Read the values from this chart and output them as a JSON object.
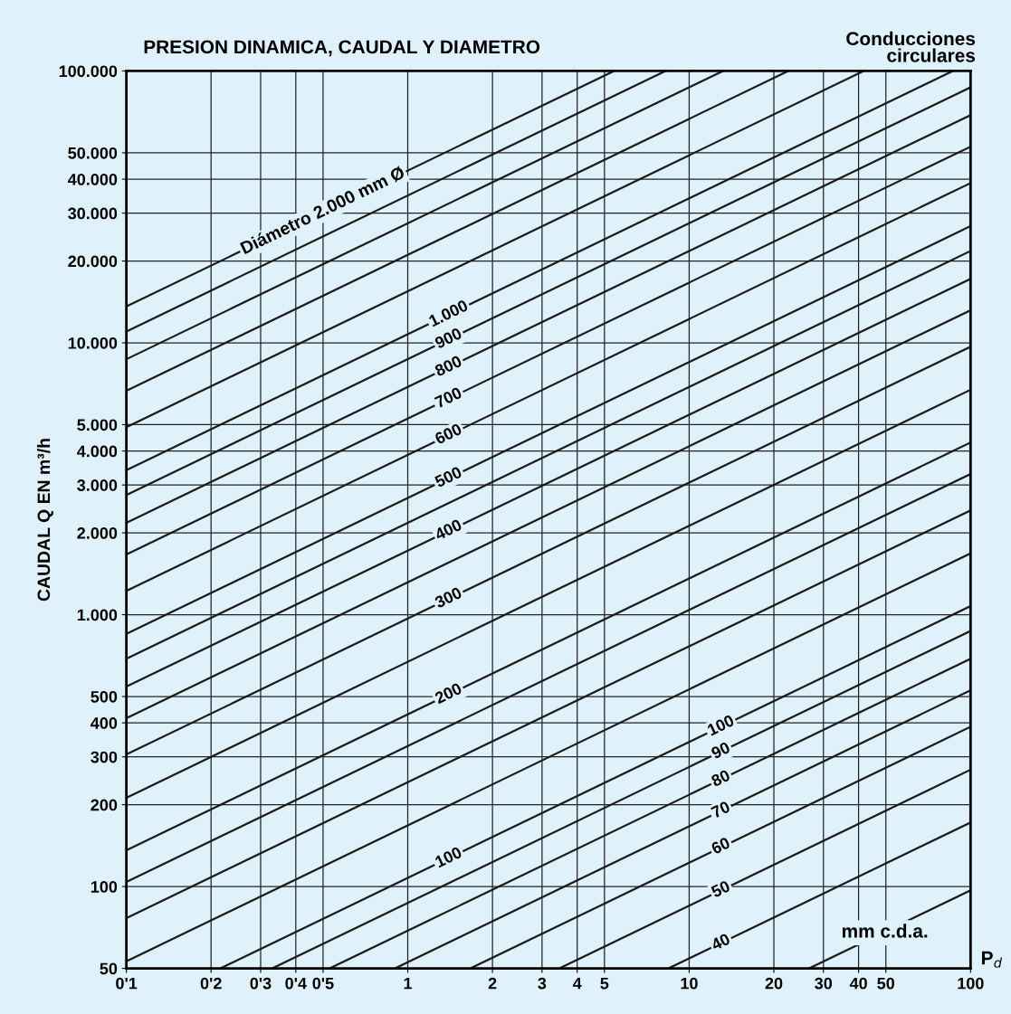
{
  "chart_data": {
    "type": "line",
    "title": "PRESION DINAMICA, CAUDAL Y DIAMETRO",
    "ylabel": "CAUDAL Q EN m³/h",
    "xlabel": "P$_{d}$",
    "log": "xy",
    "grid": true,
    "marker": "none",
    "line_style": "solid",
    "xlim": [
      0.1,
      100
    ],
    "ylim": [
      50,
      100000
    ],
    "xticks": [
      {
        "value": 0.1,
        "label": "0'1"
      },
      {
        "value": 0.2,
        "label": "0'2"
      },
      {
        "value": 0.3,
        "label": "0'3"
      },
      {
        "value": 0.4,
        "label": "0'4"
      },
      {
        "value": 0.5,
        "label": "0'5"
      },
      1,
      2,
      3,
      4,
      5,
      10,
      20,
      30,
      40,
      50,
      100
    ],
    "yticks": [
      50,
      100,
      200,
      300,
      400,
      500,
      {
        "value": 1000,
        "label": "1.000"
      },
      {
        "value": 2000,
        "label": "2.000"
      },
      {
        "value": 3000,
        "label": "3.000"
      },
      {
        "value": 4000,
        "label": "4.000"
      },
      {
        "value": 5000,
        "label": "5.000"
      },
      {
        "value": 10000,
        "label": "10.000"
      },
      {
        "value": 20000,
        "label": "20.000"
      },
      {
        "value": 30000,
        "label": "30.000"
      },
      {
        "value": 40000,
        "label": "40.000"
      },
      {
        "value": 50000,
        "label": "50.000"
      },
      {
        "value": 100000,
        "label": "100.000"
      }
    ],
    "series": [
      {
        "color": "#1a1a1a",
        "x": [
          0.1,
          5.41
        ],
        "values": [
          13600,
          100000
        ]
      },
      {
        "color": "#1a1a1a",
        "x": [
          0.1,
          8.24
        ],
        "values": [
          11014,
          100000
        ]
      },
      {
        "color": "#1a1a1a",
        "x": [
          0.1,
          13.2
        ],
        "values": [
          8703,
          100000
        ]
      },
      {
        "color": "#1a1a1a",
        "x": [
          0.1,
          22.5
        ],
        "values": [
          6663,
          100000
        ]
      },
      {
        "color": "#1a1a1a",
        "x": [
          0.1,
          41.7
        ],
        "values": [
          4895,
          100000
        ]
      },
      {
        "color": "#1a1a1a",
        "x": [
          0.1,
          86.5
        ],
        "values": [
          3400,
          100000
        ]
      },
      {
        "color": "#1a1a1a",
        "x": [
          0.1,
          100
        ],
        "values": [
          2754,
          87080
        ]
      },
      {
        "color": "#1a1a1a",
        "x": [
          0.1,
          100
        ],
        "values": [
          2176,
          68800
        ]
      },
      {
        "color": "#1a1a1a",
        "x": [
          0.1,
          100
        ],
        "values": [
          1666,
          52680
        ]
      },
      {
        "color": "#1a1a1a",
        "x": [
          0.1,
          100
        ],
        "values": [
          1224,
          38700
        ]
      },
      {
        "color": "#1a1a1a",
        "x": [
          0.1,
          100
        ],
        "values": [
          850,
          26880
        ]
      },
      {
        "color": "#1a1a1a",
        "x": [
          0.1,
          100
        ],
        "values": [
          688,
          21770
        ]
      },
      {
        "color": "#1a1a1a",
        "x": [
          0.1,
          100
        ],
        "values": [
          544,
          17200
        ]
      },
      {
        "color": "#1a1a1a",
        "x": [
          0.1,
          100
        ],
        "values": [
          416,
          13170
        ]
      },
      {
        "color": "#1a1a1a",
        "x": [
          0.1,
          100
        ],
        "values": [
          306,
          9675
        ]
      },
      {
        "color": "#1a1a1a",
        "x": [
          0.1,
          100
        ],
        "values": [
          212,
          6719
        ]
      },
      {
        "color": "#1a1a1a",
        "x": [
          0.1,
          100
        ],
        "values": [
          136,
          4300
        ]
      },
      {
        "color": "#1a1a1a",
        "x": [
          0.1,
          100
        ],
        "values": [
          104,
          3292
        ]
      },
      {
        "color": "#1a1a1a",
        "x": [
          0.1,
          100
        ],
        "values": [
          76.5,
          2419
        ]
      },
      {
        "color": "#1a1a1a",
        "x": [
          0.1,
          100
        ],
        "values": [
          53.1,
          1680
        ]
      },
      {
        "color": "#1a1a1a",
        "x": [
          0.216,
          100
        ],
        "values": [
          50,
          1075
        ]
      },
      {
        "color": "#1a1a1a",
        "x": [
          0.33,
          100
        ],
        "values": [
          50,
          871
        ]
      },
      {
        "color": "#1a1a1a",
        "x": [
          0.528,
          100
        ],
        "values": [
          50,
          688
        ]
      },
      {
        "color": "#1a1a1a",
        "x": [
          0.901,
          100
        ],
        "values": [
          50,
          527
        ]
      },
      {
        "color": "#1a1a1a",
        "x": [
          1.67,
          100
        ],
        "values": [
          50,
          387
        ]
      },
      {
        "color": "#1a1a1a",
        "x": [
          3.46,
          100
        ],
        "values": [
          50,
          269
        ]
      },
      {
        "color": "#1a1a1a",
        "x": [
          8.45,
          100
        ],
        "values": [
          50,
          172
        ]
      },
      {
        "color": "#1a1a1a",
        "x": [
          26.7,
          100
        ],
        "values": [
          50,
          96.8
        ]
      }
    ],
    "annotations": [
      "Conducciones\ncirculares",
      "mm c.d.a.",
      {
        "text": "Diámetro 2.000 mm Ø",
        "x": 0.5,
        "y": 30400
      },
      {
        "text": "1.000",
        "x": 1.4,
        "y": 12720
      },
      {
        "text": "900",
        "x": 1.4,
        "y": 10300
      },
      {
        "text": "800",
        "x": 1.4,
        "y": 8140
      },
      {
        "text": "700",
        "x": 1.4,
        "y": 6230
      },
      {
        "text": "600",
        "x": 1.4,
        "y": 4580
      },
      {
        "text": "500",
        "x": 1.4,
        "y": 3180
      },
      {
        "text": "400",
        "x": 1.4,
        "y": 2035
      },
      {
        "text": "300",
        "x": 1.4,
        "y": 1145
      },
      {
        "text": "200",
        "x": 1.4,
        "y": 509
      },
      {
        "text": "100",
        "x": 1.4,
        "y": 127
      },
      {
        "text": "100",
        "x": 13,
        "y": 388
      },
      {
        "text": "90",
        "x": 13,
        "y": 314
      },
      {
        "text": "80",
        "x": 13,
        "y": 248
      },
      {
        "text": "70",
        "x": 13,
        "y": 190
      },
      {
        "text": "60",
        "x": 13,
        "y": 140
      },
      {
        "text": "50",
        "x": 13,
        "y": 97
      },
      {
        "text": "40",
        "x": 13,
        "y": 62
      }
    ]
  }
}
